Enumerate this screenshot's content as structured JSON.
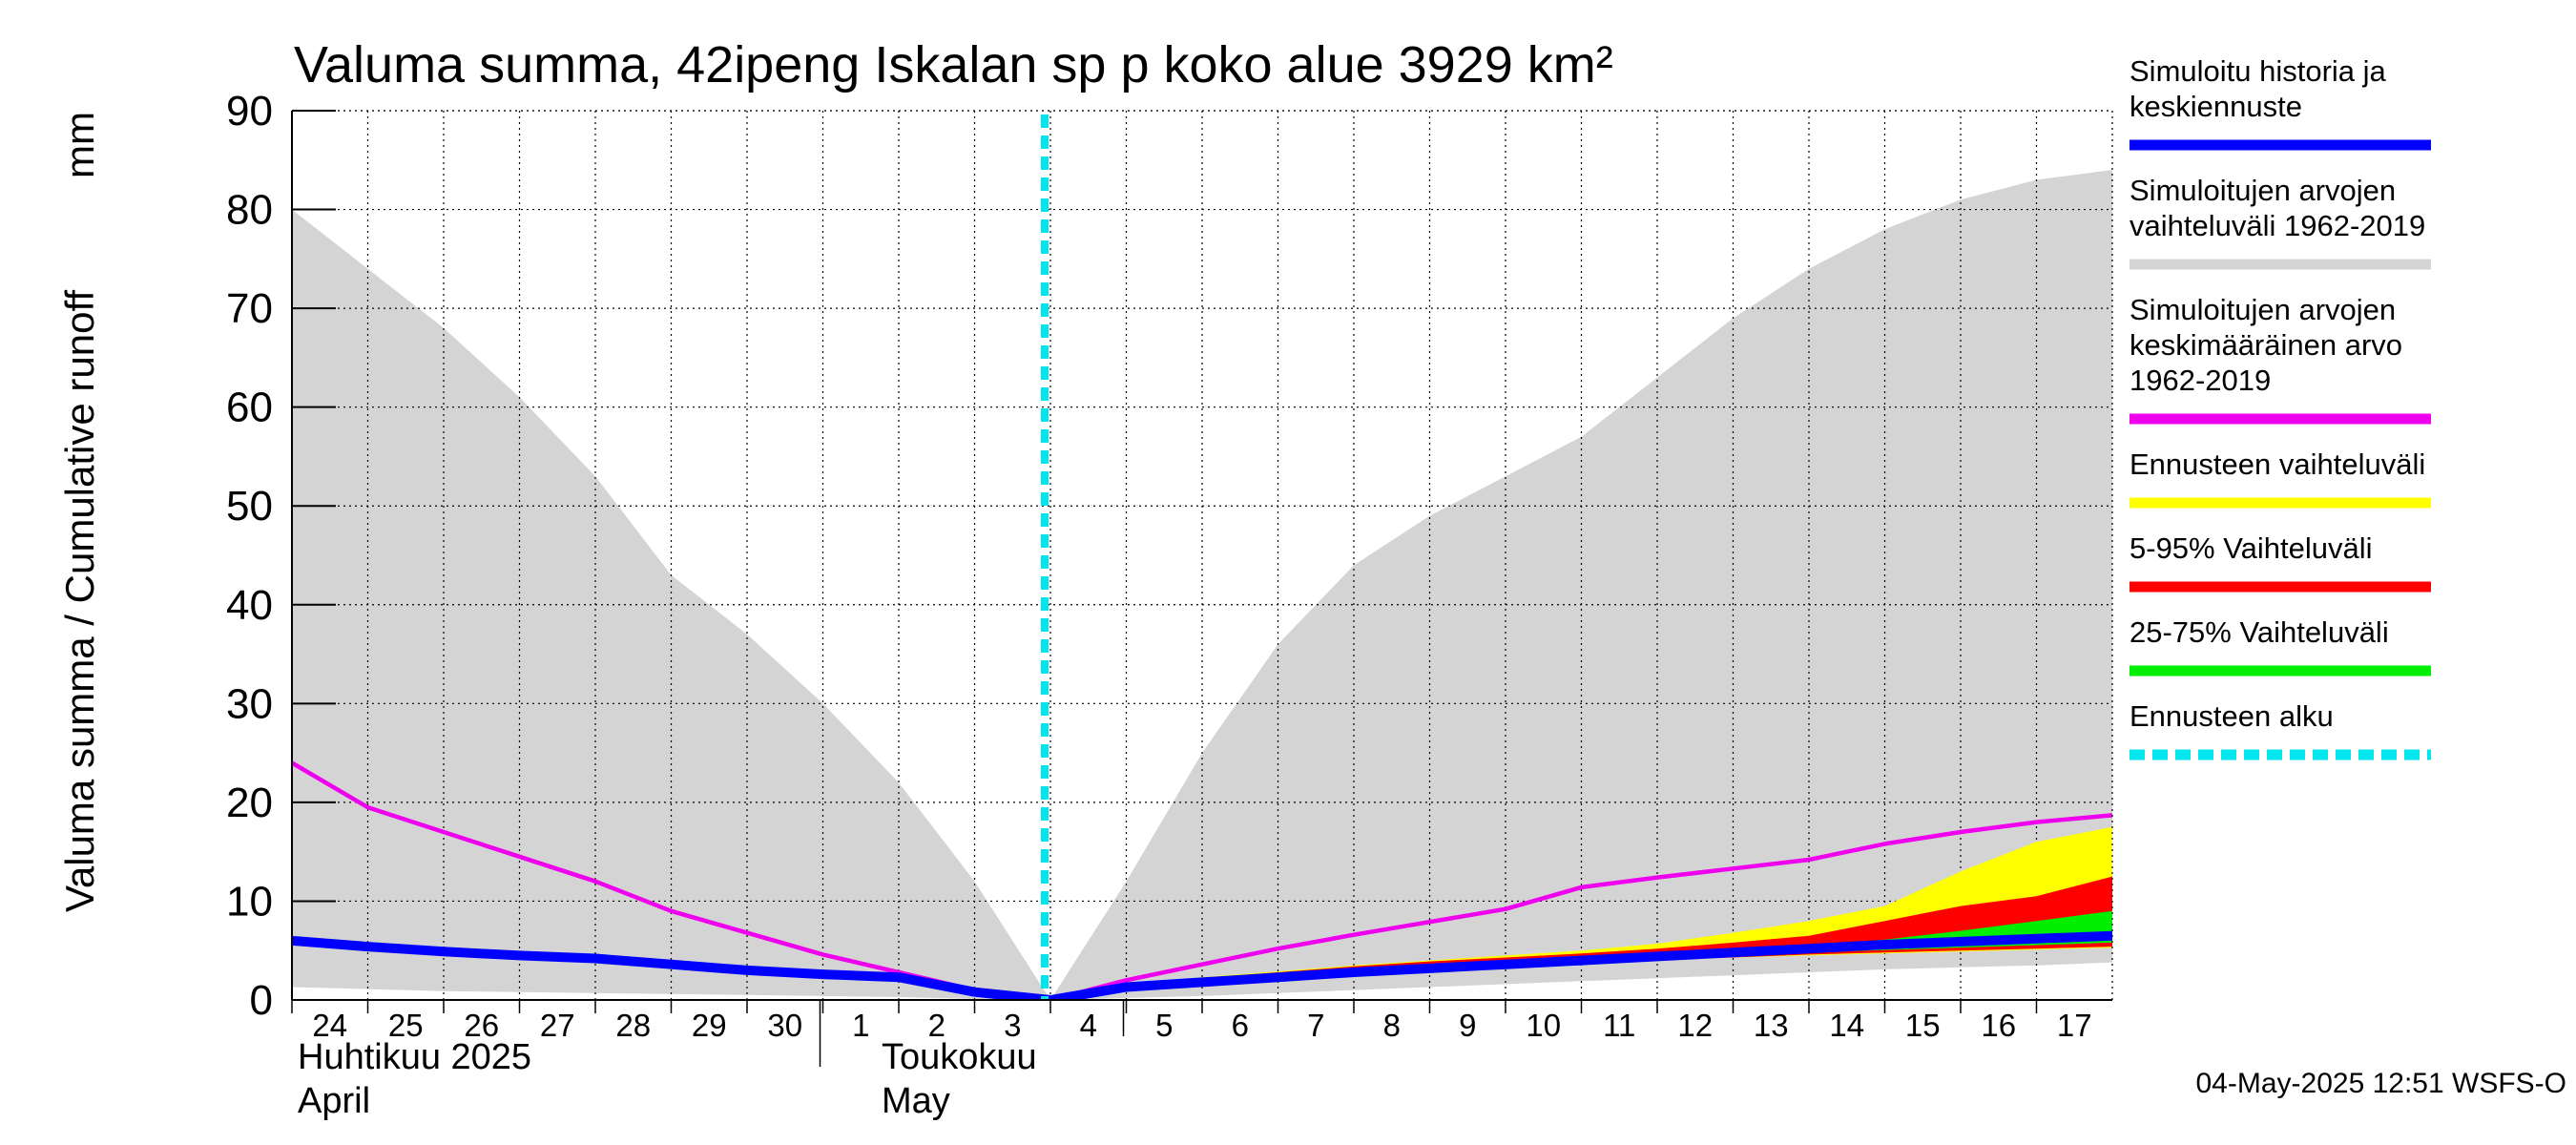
{
  "chart_data": {
    "type": "area",
    "title": "Valuma summa, 42ipeng Iskalan sp p koko alue 3929 km²",
    "ylabel": "Valuma summa / Cumulative runoff",
    "yunit": "mm",
    "ylim": [
      0,
      90
    ],
    "yticks": [
      0,
      10,
      20,
      30,
      40,
      50,
      60,
      70,
      80,
      90
    ],
    "grid": true,
    "legend_position": "right",
    "x": [
      "2025-04-24",
      "2025-04-25",
      "2025-04-26",
      "2025-04-27",
      "2025-04-28",
      "2025-04-29",
      "2025-04-30",
      "2025-05-01",
      "2025-05-02",
      "2025-05-03",
      "2025-05-04",
      "2025-05-05",
      "2025-05-06",
      "2025-05-07",
      "2025-05-08",
      "2025-05-09",
      "2025-05-10",
      "2025-05-11",
      "2025-05-12",
      "2025-05-13",
      "2025-05-14",
      "2025-05-15",
      "2025-05-16",
      "2025-05-17",
      "2025-05-18"
    ],
    "x_tick_labels": [
      "24",
      "25",
      "26",
      "27",
      "28",
      "29",
      "30",
      "1",
      "2",
      "3",
      "4",
      "5",
      "6",
      "7",
      "8",
      "9",
      "10",
      "11",
      "12",
      "13",
      "14",
      "15",
      "16",
      "17"
    ],
    "month_labels": [
      {
        "line1": "Huhtikuu  2025",
        "line2": "April"
      },
      {
        "line1": "Toukokuu",
        "line2": "May"
      }
    ],
    "forecast_start": "2025-05-04",
    "series": [
      {
        "name": "Simuloitujen arvojen vaihteluväli 1962-2019",
        "kind": "band",
        "color": "#d4d4d4",
        "upper": [
          80,
          74,
          68,
          61,
          53,
          43,
          37,
          30,
          22,
          12,
          0,
          12,
          25,
          36,
          44,
          49,
          53,
          57,
          63,
          69,
          74,
          78,
          81,
          83,
          84
        ],
        "lower": [
          1.3,
          1.1,
          0.9,
          0.8,
          0.7,
          0.6,
          0.5,
          0.4,
          0.3,
          0.1,
          0,
          0.2,
          0.4,
          0.7,
          1.0,
          1.3,
          1.6,
          1.9,
          2.2,
          2.5,
          2.8,
          3.1,
          3.3,
          3.5,
          3.8
        ]
      },
      {
        "name": "Ennusteen vaihteluväli",
        "kind": "band",
        "color": "#ffff00",
        "upper": [
          null,
          null,
          null,
          null,
          null,
          null,
          null,
          null,
          null,
          null,
          0,
          1.5,
          2.3,
          2.9,
          3.5,
          4.0,
          4.5,
          5.0,
          5.7,
          6.8,
          8.0,
          9.5,
          13.0,
          16.0,
          17.5
        ],
        "lower": [
          null,
          null,
          null,
          null,
          null,
          null,
          null,
          null,
          null,
          null,
          0,
          1.2,
          1.9,
          2.4,
          2.9,
          3.3,
          3.6,
          3.9,
          4.1,
          4.3,
          4.5,
          4.7,
          4.9,
          5.1,
          5.3
        ]
      },
      {
        "name": "5-95% Vaihteluväli",
        "kind": "band",
        "color": "#ff0000",
        "upper": [
          null,
          null,
          null,
          null,
          null,
          null,
          null,
          null,
          null,
          null,
          0,
          1.4,
          2.2,
          2.8,
          3.4,
          3.9,
          4.3,
          4.7,
          5.2,
          5.8,
          6.5,
          8.0,
          9.5,
          10.5,
          12.5
        ],
        "lower": [
          null,
          null,
          null,
          null,
          null,
          null,
          null,
          null,
          null,
          null,
          0,
          1.2,
          1.9,
          2.4,
          2.9,
          3.3,
          3.6,
          3.9,
          4.1,
          4.3,
          4.6,
          4.8,
          5.0,
          5.2,
          5.4
        ]
      },
      {
        "name": "25-75% Vaihteluväli",
        "kind": "band",
        "color": "#00ee00",
        "upper": [
          null,
          null,
          null,
          null,
          null,
          null,
          null,
          null,
          null,
          null,
          0,
          1.35,
          2.1,
          2.7,
          3.2,
          3.6,
          4.0,
          4.3,
          4.6,
          5.0,
          5.5,
          6.1,
          7.0,
          8.0,
          9.0
        ],
        "lower": [
          null,
          null,
          null,
          null,
          null,
          null,
          null,
          null,
          null,
          null,
          0,
          1.25,
          1.95,
          2.5,
          2.95,
          3.35,
          3.7,
          4.0,
          4.25,
          4.5,
          4.8,
          5.05,
          5.3,
          5.55,
          5.8
        ]
      },
      {
        "name": "Simuloitujen arvojen keskimääräinen arvo 1962-2019",
        "kind": "line",
        "color": "#ee00ee",
        "values": [
          24,
          19.5,
          17,
          14.5,
          12,
          9,
          6.8,
          4.6,
          2.8,
          1.0,
          0,
          2.0,
          3.6,
          5.2,
          6.6,
          7.9,
          9.2,
          11.4,
          12.4,
          13.3,
          14.2,
          15.8,
          17.0,
          18.0,
          18.7
        ]
      },
      {
        "name": "Simuloitu historia ja keskiennuste",
        "kind": "line",
        "color": "#0000ff",
        "values": [
          6.0,
          5.4,
          4.9,
          4.5,
          4.2,
          3.6,
          3.0,
          2.6,
          2.3,
          0.8,
          0,
          1.3,
          1.8,
          2.3,
          2.8,
          3.2,
          3.6,
          4.0,
          4.4,
          4.8,
          5.2,
          5.6,
          5.9,
          6.2,
          6.5
        ]
      }
    ]
  },
  "legend": [
    {
      "lines": [
        "Simuloitu historia ja",
        "keskiennuste"
      ],
      "color": "#0000ff",
      "style": "solid"
    },
    {
      "lines": [
        "Simuloitujen arvojen",
        "vaihteluväli 1962-2019"
      ],
      "color": "#d4d4d4",
      "style": "solid"
    },
    {
      "lines": [
        "Simuloitujen arvojen",
        "keskimääräinen arvo",
        "   1962-2019"
      ],
      "color": "#ee00ee",
      "style": "solid"
    },
    {
      "lines": [
        "Ennusteen vaihteluväli"
      ],
      "color": "#ffff00",
      "style": "solid"
    },
    {
      "lines": [
        "5-95% Vaihteluväli"
      ],
      "color": "#ff0000",
      "style": "solid"
    },
    {
      "lines": [
        "25-75% Vaihteluväli"
      ],
      "color": "#00ee00",
      "style": "solid"
    },
    {
      "lines": [
        "Ennusteen alku"
      ],
      "color": "#00e5ee",
      "style": "dashed"
    }
  ],
  "timestamp": "04-May-2025 12:51 WSFS-O"
}
